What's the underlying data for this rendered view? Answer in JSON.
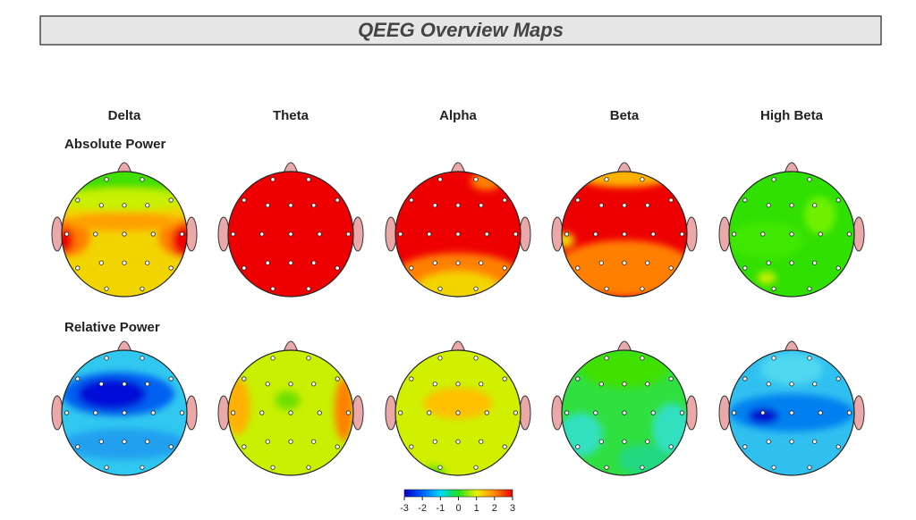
{
  "title": "QEEG Overview Maps",
  "bands": [
    "Delta",
    "Theta",
    "Alpha",
    "Beta",
    "High Beta"
  ],
  "rows": [
    "Absolute Power",
    "Relative Power"
  ],
  "colorbar": {
    "ticks": [
      -3,
      -2,
      -1,
      0,
      1,
      2,
      3
    ],
    "lim": [
      -3,
      3
    ]
  }
}
